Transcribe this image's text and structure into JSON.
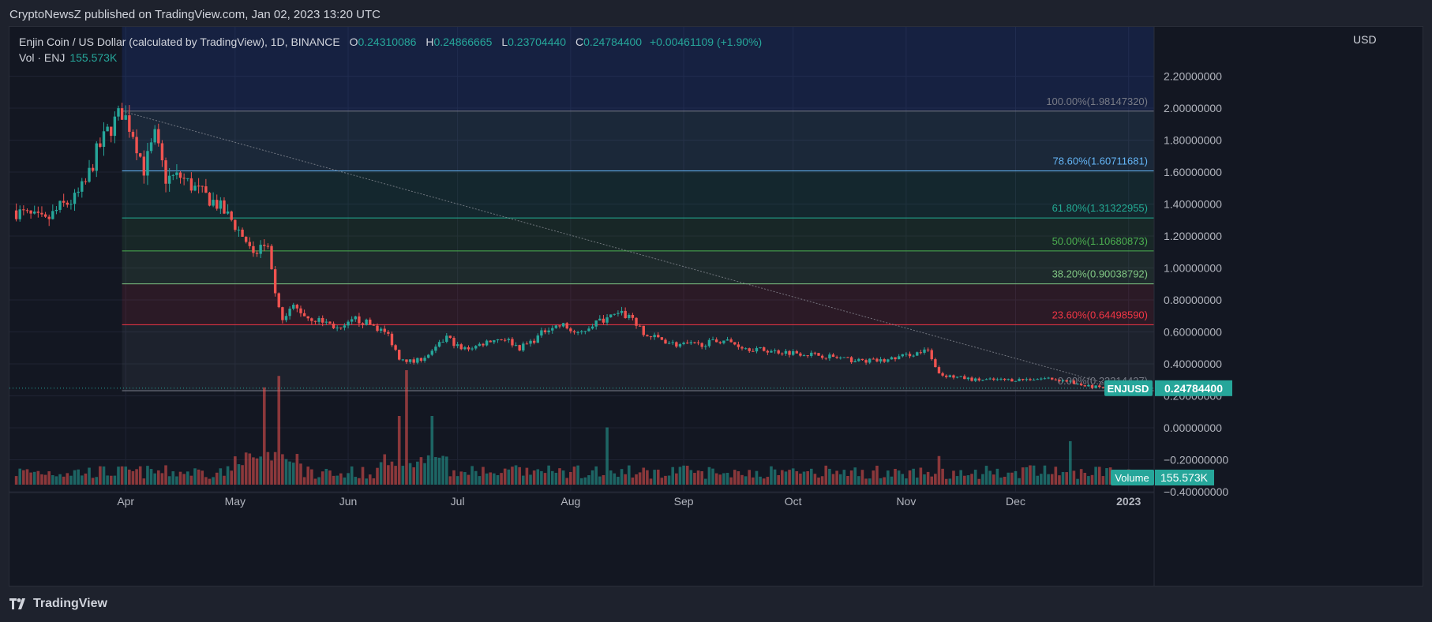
{
  "header": {
    "publish_line": "CryptoNewsZ published on TradingView.com, Jan 02, 2023 13:20 UTC"
  },
  "legend": {
    "symbol_line": "Enjin Coin / US Dollar (calculated by TradingView), 1D, BINANCE",
    "o_label": "O",
    "o_value": "0.24310086",
    "h_label": "H",
    "h_value": "0.24866665",
    "l_label": "L",
    "l_value": "0.23704440",
    "c_label": "C",
    "c_value": "0.24784400",
    "change": "+0.00461109 (+1.90%)",
    "vol_label": "Vol · ENJ",
    "vol_value": "155.573K"
  },
  "axis": {
    "currency": "USD"
  },
  "footer": {
    "brand": "TradingView"
  },
  "colors": {
    "background": "#131722",
    "frame": "#1e222d",
    "up": "#26a69a",
    "down": "#ef5350",
    "text": "#d1d4dc"
  },
  "chart_data": {
    "type": "candlestick",
    "symbol": "ENJUSD",
    "timeframe": "1D",
    "exchange": "BINANCE",
    "x_month_labels": [
      "Apr",
      "May",
      "Jun",
      "Jul",
      "Aug",
      "Sep",
      "Oct",
      "Nov",
      "Dec",
      "2023"
    ],
    "y_tick_labels": [
      "2.20000000",
      "2.00000000",
      "1.80000000",
      "1.60000000",
      "1.40000000",
      "1.20000000",
      "1.00000000",
      "0.80000000",
      "0.60000000",
      "0.40000000",
      "0.20000000",
      "0.00000000",
      "−0.20000000",
      "−0.40000000"
    ],
    "y_ticks": [
      2.2,
      2.0,
      1.8,
      1.6,
      1.4,
      1.2,
      1.0,
      0.8,
      0.6,
      0.4,
      0.2,
      0.0,
      -0.2,
      -0.4
    ],
    "ylim": [
      -0.56,
      2.36
    ],
    "grid": true,
    "price_path": [
      [
        "2022-03-01",
        1.36
      ],
      [
        "2022-03-05",
        1.33
      ],
      [
        "2022-03-10",
        1.29
      ],
      [
        "2022-03-14",
        1.38
      ],
      [
        "2022-03-18",
        1.43
      ],
      [
        "2022-03-21",
        1.53
      ],
      [
        "2022-03-24",
        1.72
      ],
      [
        "2022-03-27",
        1.85
      ],
      [
        "2022-03-31",
        1.98
      ],
      [
        "2022-04-03",
        1.85
      ],
      [
        "2022-04-06",
        1.62
      ],
      [
        "2022-04-09",
        1.82
      ],
      [
        "2022-04-12",
        1.56
      ],
      [
        "2022-04-16",
        1.57
      ],
      [
        "2022-04-21",
        1.48
      ],
      [
        "2022-04-26",
        1.4
      ],
      [
        "2022-04-30",
        1.3
      ],
      [
        "2022-05-04",
        1.17
      ],
      [
        "2022-05-06",
        1.06
      ],
      [
        "2022-05-08",
        1.14
      ],
      [
        "2022-05-10",
        1.1
      ],
      [
        "2022-05-12",
        0.82
      ],
      [
        "2022-05-14",
        0.66
      ],
      [
        "2022-05-17",
        0.76
      ],
      [
        "2022-05-21",
        0.69
      ],
      [
        "2022-05-26",
        0.66
      ],
      [
        "2022-05-30",
        0.61
      ],
      [
        "2022-06-03",
        0.68
      ],
      [
        "2022-06-08",
        0.64
      ],
      [
        "2022-06-12",
        0.58
      ],
      [
        "2022-06-15",
        0.44
      ],
      [
        "2022-06-19",
        0.41
      ],
      [
        "2022-06-24",
        0.47
      ],
      [
        "2022-06-28",
        0.57
      ],
      [
        "2022-07-02",
        0.49
      ],
      [
        "2022-07-06",
        0.51
      ],
      [
        "2022-07-10",
        0.55
      ],
      [
        "2022-07-14",
        0.56
      ],
      [
        "2022-07-18",
        0.5
      ],
      [
        "2022-07-22",
        0.55
      ],
      [
        "2022-07-26",
        0.63
      ],
      [
        "2022-07-30",
        0.64
      ],
      [
        "2022-08-03",
        0.58
      ],
      [
        "2022-08-07",
        0.65
      ],
      [
        "2022-08-11",
        0.69
      ],
      [
        "2022-08-15",
        0.71
      ],
      [
        "2022-08-18",
        0.69
      ],
      [
        "2022-08-21",
        0.58
      ],
      [
        "2022-08-25",
        0.56
      ],
      [
        "2022-08-30",
        0.52
      ],
      [
        "2022-09-05",
        0.52
      ],
      [
        "2022-09-12",
        0.55
      ],
      [
        "2022-09-18",
        0.5
      ],
      [
        "2022-09-25",
        0.48
      ],
      [
        "2022-10-02",
        0.47
      ],
      [
        "2022-10-10",
        0.45
      ],
      [
        "2022-10-18",
        0.42
      ],
      [
        "2022-10-26",
        0.42
      ],
      [
        "2022-11-02",
        0.46
      ],
      [
        "2022-11-07",
        0.48
      ],
      [
        "2022-11-09",
        0.37
      ],
      [
        "2022-11-11",
        0.33
      ],
      [
        "2022-11-20",
        0.3
      ],
      [
        "2022-11-30",
        0.3
      ],
      [
        "2022-12-10",
        0.31
      ],
      [
        "2022-12-16",
        0.29
      ],
      [
        "2022-12-20",
        0.26
      ],
      [
        "2022-12-26",
        0.25
      ],
      [
        "2023-01-02",
        0.2478
      ]
    ],
    "fibonacci": {
      "from_date": "2022-03-31",
      "to_date": "2023-01-02",
      "levels": [
        {
          "label": "100.00%(1.98147320)",
          "value": 1.9814732,
          "color": "#787b86"
        },
        {
          "label": "78.60%(1.60711681)",
          "value": 1.60711681,
          "color": "#64b5f6"
        },
        {
          "label": "61.80%(1.31322955)",
          "value": 1.31322955,
          "color": "#22ab94"
        },
        {
          "label": "50.00%(1.10680873)",
          "value": 1.10680873,
          "color": "#4caf50"
        },
        {
          "label": "38.20%(0.90038792)",
          "value": 0.90038792,
          "color": "#81c784"
        },
        {
          "label": "23.60%(0.64498590)",
          "value": 0.6449859,
          "color": "#f23645"
        },
        {
          "label": "0.00%(0.23214427)",
          "value": 0.23214427,
          "color": "#787b86"
        }
      ]
    },
    "last_price_label": {
      "symbol": "ENJUSD",
      "value": "0.24784400",
      "price": 0.247844
    },
    "volume": {
      "label": "Volume",
      "value": "155.573K",
      "peaks": [
        [
          "2022-05-09",
          0.85
        ],
        [
          "2022-05-13",
          0.95
        ],
        [
          "2022-06-17",
          1.0
        ],
        [
          "2022-06-15",
          0.6
        ],
        [
          "2022-06-24",
          0.6
        ],
        [
          "2022-08-11",
          0.5
        ],
        [
          "2022-11-10",
          0.25
        ],
        [
          "2022-12-16",
          0.38
        ]
      ]
    }
  }
}
